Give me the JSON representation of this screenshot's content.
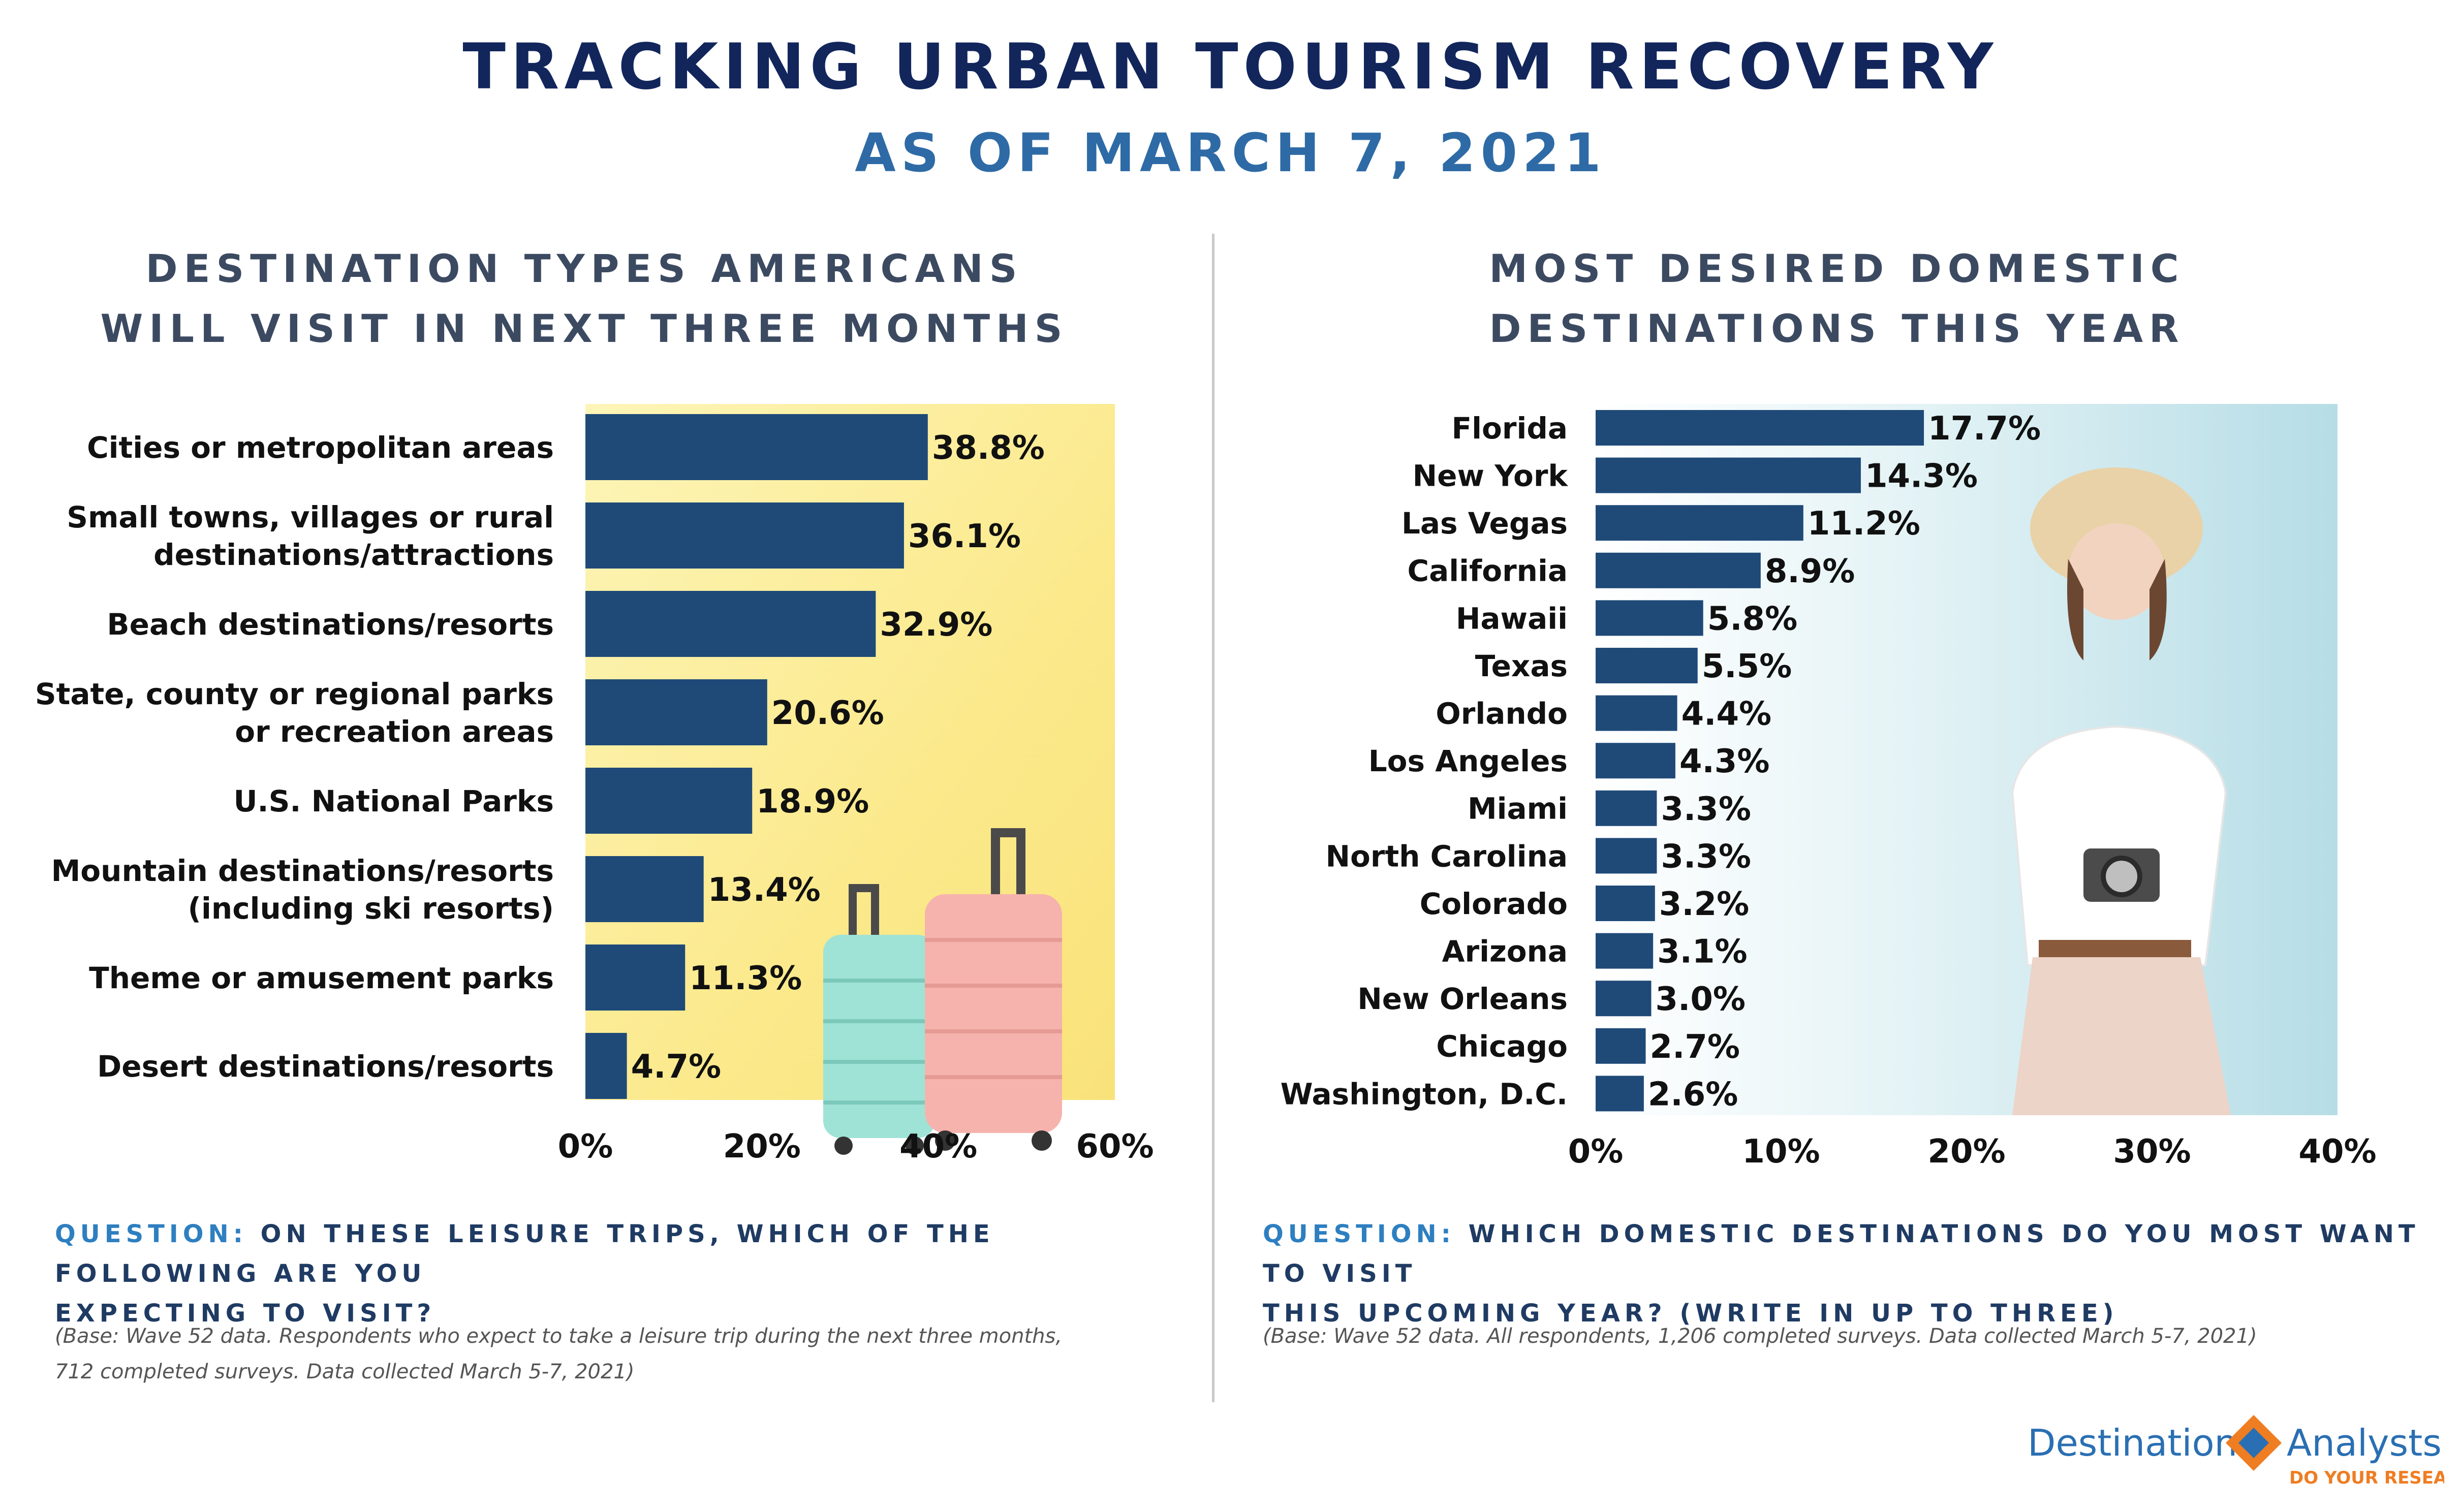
{
  "header": {
    "title": "TRACKING URBAN TOURISM RECOVERY",
    "subtitle": "AS OF MARCH 7, 2021"
  },
  "left_panel": {
    "title_line1": "DESTINATION TYPES AMERICANS",
    "title_line2": "WILL VISIT IN NEXT THREE MONTHS",
    "question_label": "QUESTION:",
    "question_line1": "ON THESE LEISURE TRIPS, WHICH OF THE FOLLOWING ARE YOU",
    "question_line2": "EXPECTING TO VISIT?",
    "base_line1": "(Base: Wave 52 data. Respondents who expect to take a leisure trip during the next three months,",
    "base_line2": "712 completed surveys. Data collected March 5-7, 2021)"
  },
  "right_panel": {
    "title_line1": "MOST DESIRED DOMESTIC",
    "title_line2": "DESTINATIONS THIS YEAR",
    "question_label": "QUESTION:",
    "question_line1": "WHICH DOMESTIC DESTINATIONS DO YOU MOST WANT TO VISIT",
    "question_line2": "THIS UPCOMING YEAR? (WRITE IN UP TO THREE)",
    "base_line1": "(Base: Wave 52 data. All respondents, 1,206 completed surveys. Data collected March 5-7, 2021)"
  },
  "logo": {
    "name_part1": "Destination",
    "name_part2": "Analysts",
    "tagline": "DO YOUR RESEARCH"
  },
  "colors": {
    "bar": "#1f4a78",
    "title": "#12265c",
    "subtitle": "#2e6ba6",
    "left_background": "#fcef9c",
    "right_background": "#bfe2ea",
    "logo_orange": "#ef7d22",
    "logo_blue": "#2a6fb3"
  },
  "chart_data": [
    {
      "type": "bar",
      "orientation": "horizontal",
      "categories": [
        [
          "Cities or metropolitan areas"
        ],
        [
          "Small towns, villages or rural",
          "destinations/attractions"
        ],
        [
          "Beach destinations/resorts"
        ],
        [
          "State, county or regional parks",
          "or recreation areas"
        ],
        [
          "U.S. National Parks"
        ],
        [
          "Mountain destinations/resorts",
          "(including ski resorts)"
        ],
        [
          "Theme or amusement parks"
        ],
        [
          "Desert destinations/resorts"
        ]
      ],
      "values": [
        38.8,
        36.1,
        32.9,
        20.6,
        18.9,
        13.4,
        11.3,
        4.7
      ],
      "data_labels": [
        "38.8%",
        "36.1%",
        "32.9%",
        "20.6%",
        "18.9%",
        "13.4%",
        "11.3%",
        "4.7%"
      ],
      "xlim": [
        0,
        60
      ],
      "x_ticks": [
        0,
        20,
        40,
        60
      ],
      "x_tick_labels": [
        "0%",
        "20%",
        "40%",
        "60%"
      ],
      "grid": false
    },
    {
      "type": "bar",
      "orientation": "horizontal",
      "categories": [
        [
          "Florida"
        ],
        [
          "New York"
        ],
        [
          "Las Vegas"
        ],
        [
          "California"
        ],
        [
          "Hawaii"
        ],
        [
          "Texas"
        ],
        [
          "Orlando"
        ],
        [
          "Los Angeles"
        ],
        [
          "Miami"
        ],
        [
          "North Carolina"
        ],
        [
          "Colorado"
        ],
        [
          "Arizona"
        ],
        [
          "New Orleans"
        ],
        [
          "Chicago"
        ],
        [
          "Washington, D.C."
        ]
      ],
      "values": [
        17.7,
        14.3,
        11.2,
        8.9,
        5.8,
        5.5,
        4.4,
        4.3,
        3.3,
        3.3,
        3.2,
        3.1,
        3.0,
        2.7,
        2.6
      ],
      "data_labels": [
        "17.7%",
        "14.3%",
        "11.2%",
        "8.9%",
        "5.8%",
        "5.5%",
        "4.4%",
        "4.3%",
        "3.3%",
        "3.3%",
        "3.2%",
        "3.1%",
        "3.0%",
        "2.7%",
        "2.6%"
      ],
      "xlim": [
        0,
        40
      ],
      "x_ticks": [
        0,
        10,
        20,
        30,
        40
      ],
      "x_tick_labels": [
        "0%",
        "10%",
        "20%",
        "30%",
        "40%"
      ],
      "grid": false
    }
  ]
}
